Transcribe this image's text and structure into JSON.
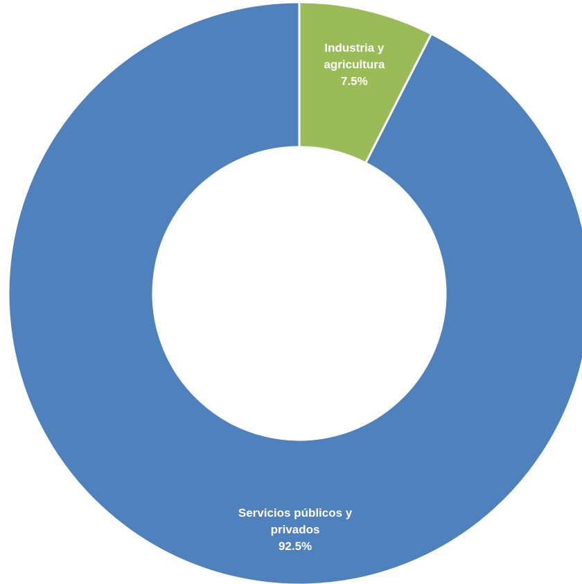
{
  "chart_data": {
    "type": "pie",
    "style": "donut",
    "categories": [
      "Industria y agricultura",
      "Servicios públicos y privados"
    ],
    "values": [
      7.5,
      92.5
    ],
    "unit": "%",
    "colors": [
      "#9BBB59",
      "#4F81BD"
    ],
    "slice_border_color": "#FFFFFF",
    "legend": "none",
    "data_labels": [
      {
        "lines": [
          "Industria y",
          "agricultura"
        ],
        "percent": "7.5%"
      },
      {
        "lines": [
          "Servicios públicos y",
          "privados"
        ],
        "percent": "92.5%"
      }
    ]
  }
}
